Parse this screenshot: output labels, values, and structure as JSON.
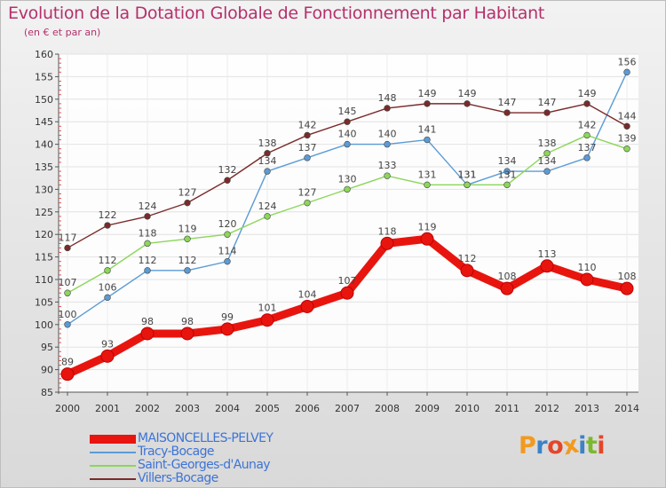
{
  "title": "Evolution de la Dotation Globale de Fonctionnement par Habitant",
  "subtitle": "(en € et par an)",
  "logo": {
    "text": "Proxiti",
    "letter_colors": [
      "#f29a1e",
      "#3d82c6",
      "#e5462a",
      "#f29a1e",
      "#3d82c6",
      "#7cb82f",
      "#e5462a"
    ]
  },
  "chart_data": {
    "type": "line",
    "title": "Evolution de la Dotation Globale de Fonctionnement par Habitant",
    "subtitle": "(en € et par an)",
    "xlabel": "",
    "ylabel": "",
    "x": [
      2000,
      2001,
      2002,
      2003,
      2004,
      2005,
      2006,
      2007,
      2008,
      2009,
      2010,
      2011,
      2012,
      2013,
      2014
    ],
    "ylim": [
      85,
      160
    ],
    "yticks": [
      85,
      90,
      95,
      100,
      105,
      110,
      115,
      120,
      125,
      130,
      135,
      140,
      145,
      150,
      155,
      160
    ],
    "grid": true,
    "legend_position": "bottom-left",
    "series": [
      {
        "name": "MAISONCELLES-PELVEY",
        "color": "#e8150f",
        "emphasis": true,
        "values": [
          89,
          93,
          98,
          98,
          99,
          101,
          104,
          107,
          118,
          119,
          112,
          108,
          113,
          110,
          108
        ]
      },
      {
        "name": "Tracy-Bocage",
        "color": "#5b9bd5",
        "values": [
          100,
          106,
          112,
          112,
          114,
          134,
          137,
          140,
          140,
          141,
          131,
          134,
          134,
          137,
          156
        ]
      },
      {
        "name": "Saint-Georges-d'Aunay",
        "color": "#8cd65a",
        "values": [
          107,
          112,
          118,
          119,
          120,
          124,
          127,
          130,
          133,
          131,
          131,
          131,
          138,
          142,
          139
        ]
      },
      {
        "name": "Villers-Bocage",
        "color": "#7b2a2a",
        "values": [
          117,
          122,
          124,
          127,
          132,
          138,
          142,
          145,
          148,
          149,
          149,
          147,
          147,
          149,
          144
        ]
      }
    ]
  }
}
